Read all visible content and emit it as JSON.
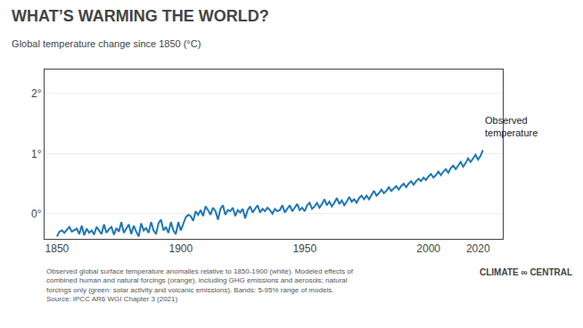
{
  "chart_data": {
    "type": "line",
    "title": "WHAT’S WARMING THE WORLD?",
    "subtitle": "Global temperature change since 1850 (°C)",
    "x": [
      1850,
      1851,
      1852,
      1853,
      1854,
      1855,
      1856,
      1857,
      1858,
      1859,
      1860,
      1861,
      1862,
      1863,
      1864,
      1865,
      1866,
      1867,
      1868,
      1869,
      1870,
      1871,
      1872,
      1873,
      1874,
      1875,
      1876,
      1877,
      1878,
      1879,
      1880,
      1881,
      1882,
      1883,
      1884,
      1885,
      1886,
      1887,
      1888,
      1889,
      1890,
      1891,
      1892,
      1893,
      1894,
      1895,
      1896,
      1897,
      1898,
      1899,
      1900,
      1901,
      1902,
      1903,
      1904,
      1905,
      1906,
      1907,
      1908,
      1909,
      1910,
      1911,
      1912,
      1913,
      1914,
      1915,
      1916,
      1917,
      1918,
      1919,
      1920,
      1921,
      1922,
      1923,
      1924,
      1925,
      1926,
      1927,
      1928,
      1929,
      1930,
      1931,
      1932,
      1933,
      1934,
      1935,
      1936,
      1937,
      1938,
      1939,
      1940,
      1941,
      1942,
      1943,
      1944,
      1945,
      1946,
      1947,
      1948,
      1949,
      1950,
      1951,
      1952,
      1953,
      1954,
      1955,
      1956,
      1957,
      1958,
      1959,
      1960,
      1961,
      1962,
      1963,
      1964,
      1965,
      1966,
      1967,
      1968,
      1969,
      1970,
      1971,
      1972,
      1973,
      1974,
      1975,
      1976,
      1977,
      1978,
      1979,
      1980,
      1981,
      1982,
      1983,
      1984,
      1985,
      1986,
      1987,
      1988,
      1989,
      1990,
      1991,
      1992,
      1993,
      1994,
      1995,
      1996,
      1997,
      1998,
      1999,
      2000,
      2001,
      2002,
      2003,
      2004,
      2005,
      2006,
      2007,
      2008,
      2009,
      2010,
      2011,
      2012,
      2013,
      2014,
      2015,
      2016,
      2017,
      2018,
      2019,
      2020,
      2021,
      2022
    ],
    "values": [
      -0.38,
      -0.3,
      -0.28,
      -0.32,
      -0.27,
      -0.22,
      -0.3,
      -0.28,
      -0.25,
      -0.34,
      -0.2,
      -0.36,
      -0.25,
      -0.32,
      -0.28,
      -0.35,
      -0.22,
      -0.28,
      -0.34,
      -0.18,
      -0.32,
      -0.26,
      -0.22,
      -0.35,
      -0.24,
      -0.3,
      -0.14,
      -0.32,
      -0.25,
      -0.18,
      -0.34,
      -0.2,
      -0.3,
      -0.38,
      -0.16,
      -0.28,
      -0.24,
      -0.32,
      -0.14,
      -0.28,
      -0.34,
      -0.16,
      -0.1,
      -0.28,
      -0.22,
      -0.32,
      -0.14,
      -0.28,
      -0.34,
      -0.14,
      -0.28,
      -0.16,
      -0.06,
      -0.02,
      -0.04,
      -0.12,
      0.04,
      -0.02,
      0.06,
      -0.04,
      0.12,
      0.06,
      -0.02,
      0.1,
      0.04,
      -0.1,
      0.08,
      0.14,
      -0.02,
      0.06,
      0.04,
      0.1,
      -0.04,
      0.06,
      0.02,
      0.08,
      -0.08,
      0.06,
      0.12,
      0.02,
      0.08,
      0.14,
      0.02,
      0.08,
      0.04,
      0.1,
      0.06,
      0.0,
      0.08,
      0.04,
      0.06,
      0.14,
      0.02,
      0.08,
      0.14,
      0.04,
      0.1,
      0.16,
      0.06,
      0.1,
      0.04,
      0.14,
      0.18,
      0.08,
      0.12,
      0.18,
      0.1,
      0.16,
      0.24,
      0.14,
      0.2,
      0.12,
      0.18,
      0.26,
      0.16,
      0.22,
      0.14,
      0.2,
      0.28,
      0.2,
      0.24,
      0.18,
      0.26,
      0.3,
      0.24,
      0.3,
      0.24,
      0.32,
      0.38,
      0.3,
      0.34,
      0.4,
      0.34,
      0.38,
      0.44,
      0.38,
      0.42,
      0.46,
      0.4,
      0.46,
      0.5,
      0.44,
      0.5,
      0.54,
      0.48,
      0.54,
      0.58,
      0.54,
      0.6,
      0.56,
      0.62,
      0.66,
      0.6,
      0.64,
      0.7,
      0.64,
      0.7,
      0.74,
      0.68,
      0.76,
      0.8,
      0.74,
      0.8,
      0.86,
      0.78,
      0.84,
      0.92,
      0.86,
      0.92,
      0.98,
      0.9,
      0.96,
      1.06
    ],
    "xlim": [
      1845,
      2030
    ],
    "xticks": [
      1850,
      1900,
      1950,
      2000,
      2020
    ],
    "ylim": [
      -0.42,
      2.4
    ],
    "yticks": [
      {
        "value": 0,
        "label": "0°"
      },
      {
        "value": 1,
        "label": "1°"
      },
      {
        "value": 2,
        "label": "2°"
      }
    ],
    "grid": "y",
    "annotations": [
      {
        "text": "Observed\ntemperature",
        "x": 2022,
        "y": 1.45
      }
    ],
    "footer": "Observed global surface temperature anomalies relative to 1850-1900 (white). Modeled effects of\ncombined human and natural forcings (orange), including GHG emissions and aerosols; natural\nforcings only (green: solar activity and volcanic emissions). Bands: 5-95% range of models.\nSource: IPCC AR6 WGI Chapter 3 (2021)",
    "credit": "CLIMATE ∞ CENTRAL"
  }
}
